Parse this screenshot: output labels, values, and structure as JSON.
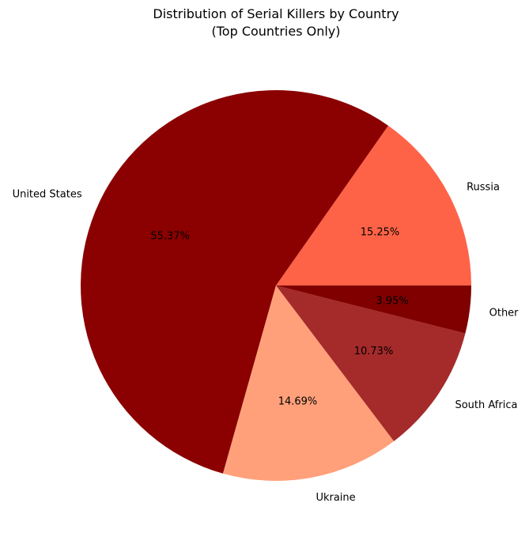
{
  "chart_data": {
    "type": "pie",
    "title_lines": [
      "Distribution of Serial Killers by Country",
      "(Top Countries Only)"
    ],
    "start_angle_deg": 0,
    "direction": "counterclockwise",
    "slices": [
      {
        "label": "Russia",
        "value": 15.25,
        "pct_label": "15.25%",
        "color": "#ff6347"
      },
      {
        "label": "United States",
        "value": 55.37,
        "pct_label": "55.37%",
        "color": "#8b0000"
      },
      {
        "label": "Ukraine",
        "value": 14.69,
        "pct_label": "14.69%",
        "color": "#ffa07a"
      },
      {
        "label": "South Africa",
        "value": 10.73,
        "pct_label": "10.73%",
        "color": "#a52a2a"
      },
      {
        "label": "Other",
        "value": 3.95,
        "pct_label": "3.95%",
        "color": "#800000"
      }
    ]
  }
}
